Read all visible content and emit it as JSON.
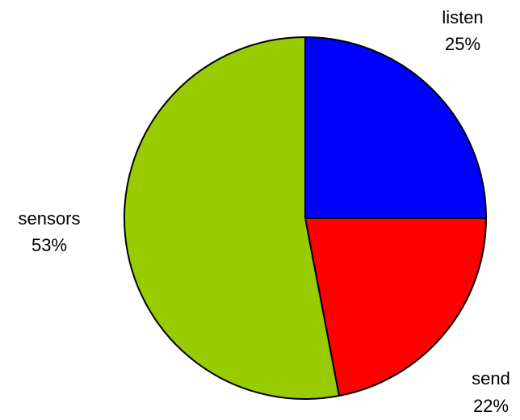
{
  "chart_data": {
    "type": "pie",
    "slices": [
      {
        "label": "listen",
        "value": 25,
        "value_text": "25%",
        "color": "#0000ff"
      },
      {
        "label": "send",
        "value": 22,
        "value_text": "22%",
        "color": "#ff0000"
      },
      {
        "label": "sensors",
        "value": 53,
        "value_text": "53%",
        "color": "#99cc00"
      }
    ],
    "start_angle": "12 o'clock",
    "direction": "clockwise",
    "legend": "none"
  }
}
